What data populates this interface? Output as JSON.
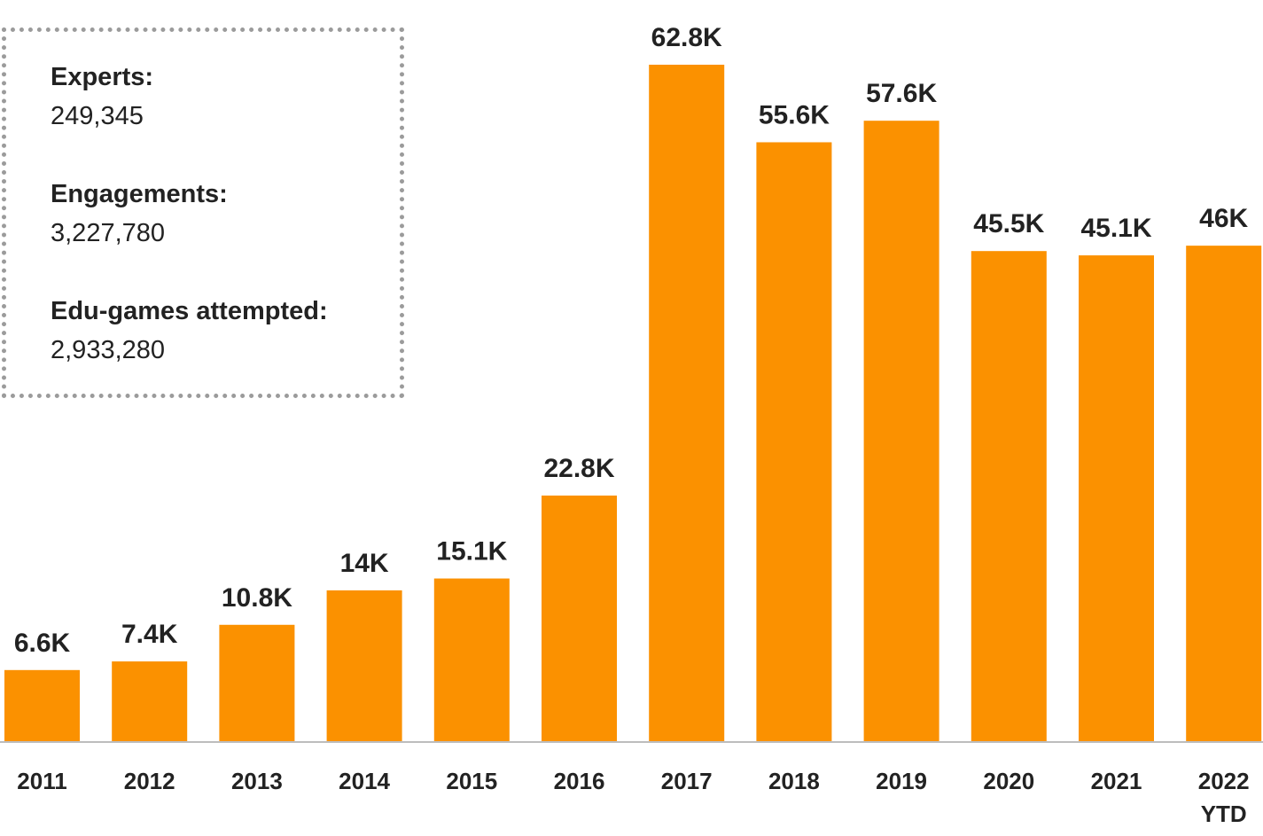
{
  "stats": [
    {
      "label": "Experts:",
      "value": "249,345"
    },
    {
      "label": "Engagements:",
      "value": "3,227,780"
    },
    {
      "label": "Edu-games attempted:",
      "value": "2,933,280"
    }
  ],
  "colors": {
    "bar": "#fb9100",
    "axis": "#bdbdbd",
    "text": "#222222",
    "box_border": "#9b9b9b"
  },
  "chart_data": {
    "type": "bar",
    "title": "",
    "xlabel": "",
    "ylabel": "",
    "categories": [
      "2011",
      "2012",
      "2013",
      "2014",
      "2015",
      "2016",
      "2017",
      "2018",
      "2019",
      "2020",
      "2021",
      "2022 YTD"
    ],
    "category_lines": [
      [
        "2011"
      ],
      [
        "2012"
      ],
      [
        "2013"
      ],
      [
        "2014"
      ],
      [
        "2015"
      ],
      [
        "2016"
      ],
      [
        "2017"
      ],
      [
        "2018"
      ],
      [
        "2019"
      ],
      [
        "2020"
      ],
      [
        "2021"
      ],
      [
        "2022",
        "YTD"
      ]
    ],
    "values": [
      6600,
      7400,
      10800,
      14000,
      15100,
      22800,
      62800,
      55600,
      57600,
      45500,
      45100,
      46000
    ],
    "data_labels": [
      "6.6K",
      "7.4K",
      "10.8K",
      "14K",
      "15.1K",
      "22.8K",
      "62.8K",
      "55.6K",
      "57.6K",
      "45.5K",
      "45.1K",
      "46K"
    ],
    "ylim": [
      0,
      62800
    ],
    "grid": false,
    "legend": "none"
  }
}
